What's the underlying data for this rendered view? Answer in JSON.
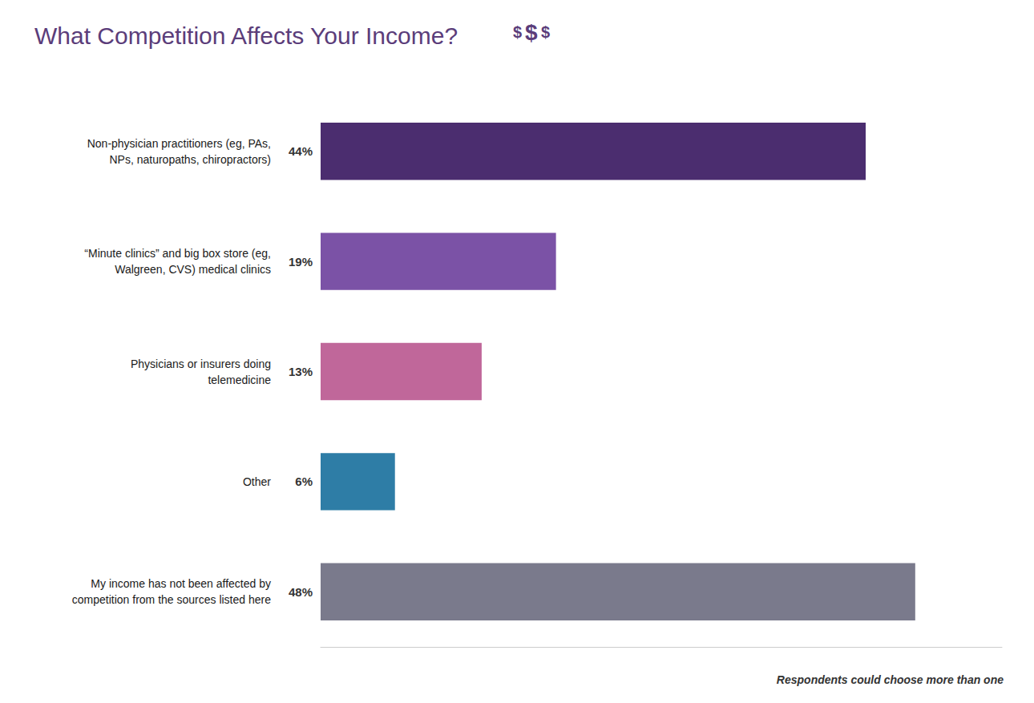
{
  "chart_data": {
    "type": "bar",
    "orientation": "horizontal",
    "title": "What Competition Affects Your Income?",
    "categories": [
      "Non-physician practitioners (eg, PAs,\nNPs, naturopaths, chiropractors)",
      "“Minute clinics” and big box store (eg,\nWalgreen, CVS) medical clinics",
      "Physicians or insurers doing\ntelemedicine",
      "Other",
      "My income has not been affected by\ncompetition from the sources listed here"
    ],
    "values": [
      44,
      19,
      13,
      6,
      48
    ],
    "value_labels": [
      "44%",
      "19%",
      "13%",
      "6%",
      "48%"
    ],
    "colors": [
      "#4b2d6f",
      "#7b52a6",
      "#c0679a",
      "#2e7da6",
      "#7a7a8c"
    ],
    "xlim": [
      0,
      55
    ],
    "data_labels": true,
    "tick_labels": "y",
    "grid": false,
    "annotations": [
      "$",
      "$",
      "$",
      "Respondents could choose more than one"
    ]
  }
}
